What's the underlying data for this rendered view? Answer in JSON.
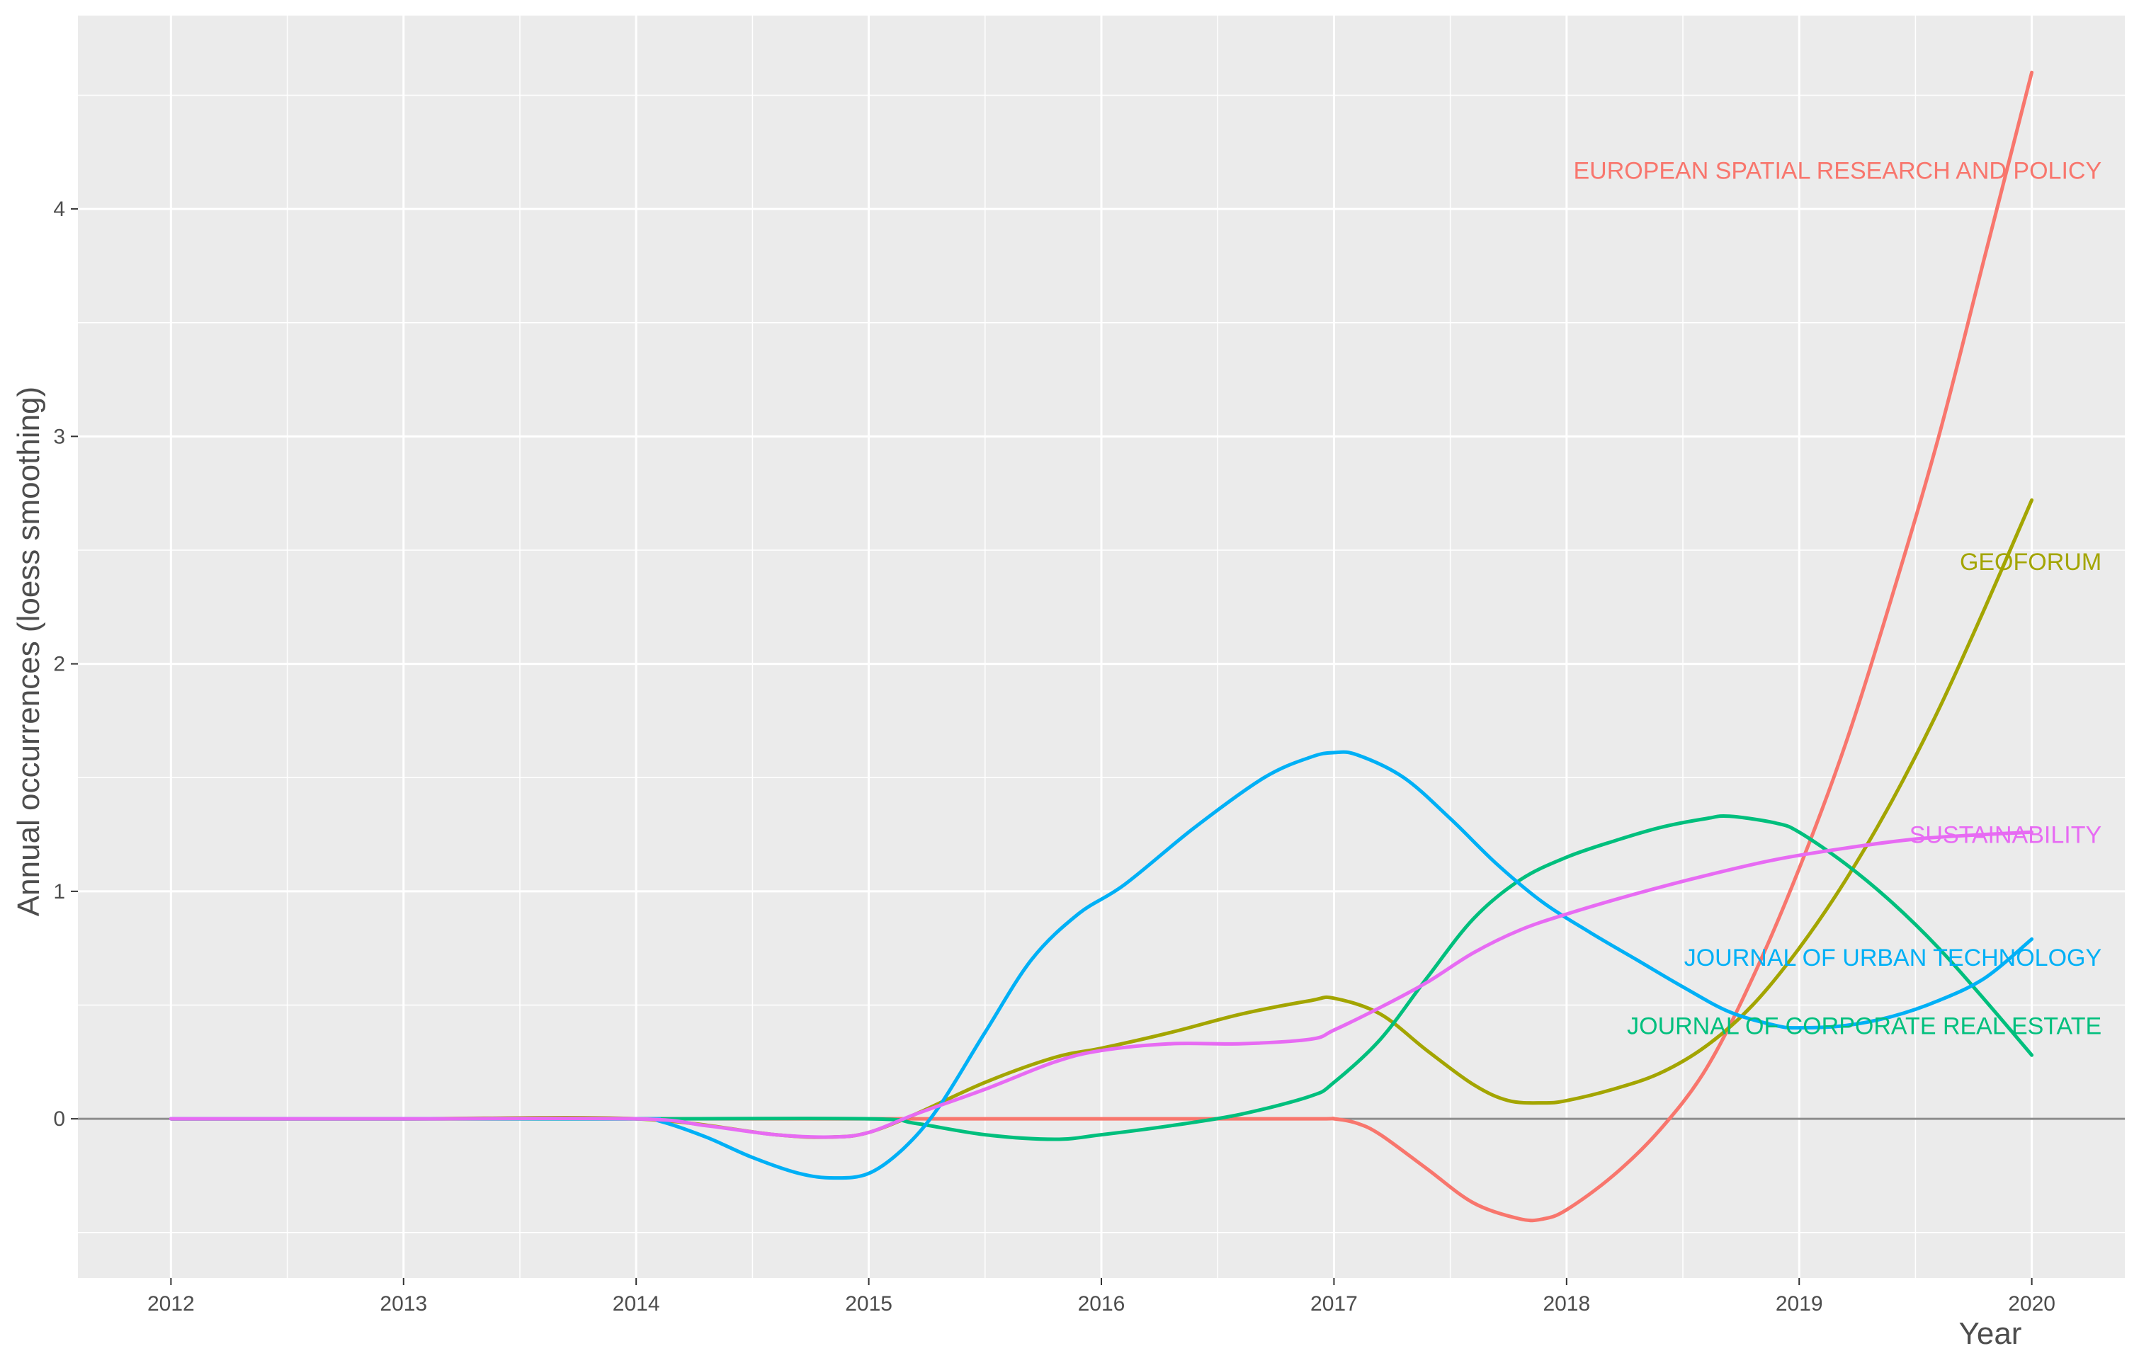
{
  "chart_data": {
    "type": "line",
    "xlabel": "Year",
    "ylabel": "Annual occurrences (loess smoothing)",
    "xlim": [
      2011.6,
      2020.4
    ],
    "ylim": [
      -0.7,
      4.85
    ],
    "x_ticks": [
      "2012",
      "2013",
      "2014",
      "2015",
      "2016",
      "2017",
      "2018",
      "2019",
      "2020"
    ],
    "y_ticks": [
      "0",
      "1",
      "2",
      "3",
      "4"
    ],
    "grid": true,
    "background": "#ebebeb",
    "zero_line": true,
    "legend": "direct labels at right",
    "series": [
      {
        "name": "EUROPEAN SPATIAL RESEARCH AND POLICY",
        "color": "#f8766d",
        "label_at": [
          2020.3,
          4.17
        ],
        "x": [
          2012,
          2013,
          2014,
          2015,
          2016,
          2016.9,
          2017,
          2017.1,
          2017.2,
          2017.4,
          2017.6,
          2017.8,
          2017.9,
          2018,
          2018.2,
          2018.4,
          2018.6,
          2018.8,
          2019,
          2019.2,
          2019.4,
          2019.6,
          2019.8,
          2020
        ],
        "y": [
          0,
          0,
          0,
          0,
          0,
          0,
          0,
          -0.02,
          -0.07,
          -0.22,
          -0.37,
          -0.44,
          -0.44,
          -0.4,
          -0.25,
          -0.05,
          0.22,
          0.62,
          1.1,
          1.65,
          2.3,
          3.0,
          3.8,
          4.6
        ]
      },
      {
        "name": "GEOFORUM",
        "color": "#a3a500",
        "label_at": [
          2020.3,
          2.45
        ],
        "x": [
          2012,
          2013,
          2014,
          2014.6,
          2014.85,
          2015,
          2015.2,
          2015.5,
          2015.8,
          2016,
          2016.3,
          2016.6,
          2016.9,
          2017,
          2017.2,
          2017.4,
          2017.6,
          2017.75,
          2017.9,
          2018,
          2018.2,
          2018.4,
          2018.6,
          2018.8,
          2019,
          2019.2,
          2019.4,
          2019.6,
          2019.8,
          2020
        ],
        "y": [
          0,
          0,
          0,
          -0.07,
          -0.08,
          -0.06,
          0.02,
          0.16,
          0.27,
          0.31,
          0.38,
          0.46,
          0.52,
          0.53,
          0.46,
          0.3,
          0.15,
          0.08,
          0.07,
          0.08,
          0.13,
          0.2,
          0.32,
          0.5,
          0.75,
          1.05,
          1.4,
          1.8,
          2.25,
          2.72
        ]
      },
      {
        "name": "JOURNAL OF CORPORATE REAL ESTATE",
        "color": "#00bf7d",
        "label_at": [
          2020.3,
          0.41
        ],
        "x": [
          2012,
          2013,
          2014,
          2015,
          2015.2,
          2015.5,
          2015.8,
          2016,
          2016.3,
          2016.6,
          2016.9,
          2017,
          2017.2,
          2017.4,
          2017.6,
          2017.8,
          2018,
          2018.2,
          2018.4,
          2018.6,
          2018.7,
          2018.9,
          2019,
          2019.2,
          2019.4,
          2019.6,
          2019.8,
          2020
        ],
        "y": [
          0,
          0,
          0,
          0,
          -0.02,
          -0.07,
          -0.09,
          -0.07,
          -0.03,
          0.02,
          0.1,
          0.16,
          0.35,
          0.62,
          0.88,
          1.05,
          1.15,
          1.22,
          1.28,
          1.32,
          1.33,
          1.3,
          1.26,
          1.12,
          0.95,
          0.75,
          0.52,
          0.28
        ]
      },
      {
        "name": "JOURNAL OF URBAN TECHNOLOGY",
        "color": "#00b0f6",
        "label_at": [
          2020.3,
          0.71
        ],
        "x": [
          2012,
          2013,
          2014,
          2014.1,
          2014.3,
          2014.5,
          2014.7,
          2014.85,
          2015,
          2015.15,
          2015.3,
          2015.5,
          2015.7,
          2015.9,
          2016.1,
          2016.4,
          2016.7,
          2016.9,
          2017,
          2017.1,
          2017.3,
          2017.5,
          2017.7,
          2017.9,
          2018.1,
          2018.3,
          2018.5,
          2018.7,
          2018.9,
          2019,
          2019.2,
          2019.4,
          2019.6,
          2019.8,
          2020
        ],
        "y": [
          0,
          0,
          0,
          -0.01,
          -0.08,
          -0.17,
          -0.24,
          -0.26,
          -0.24,
          -0.13,
          0.05,
          0.38,
          0.7,
          0.9,
          1.03,
          1.28,
          1.5,
          1.59,
          1.61,
          1.6,
          1.5,
          1.32,
          1.12,
          0.95,
          0.82,
          0.7,
          0.58,
          0.47,
          0.41,
          0.4,
          0.41,
          0.45,
          0.52,
          0.62,
          0.79
        ]
      },
      {
        "name": "SUSTAINABILITY",
        "color": "#e76bf3",
        "label_at": [
          2020.3,
          1.25
        ],
        "x": [
          2012,
          2013,
          2014,
          2014.3,
          2014.6,
          2014.85,
          2015,
          2015.2,
          2015.5,
          2015.8,
          2016,
          2016.3,
          2016.6,
          2016.9,
          2017,
          2017.2,
          2017.4,
          2017.6,
          2017.8,
          2018,
          2018.3,
          2018.6,
          2018.9,
          2019.2,
          2019.5,
          2019.8,
          2020
        ],
        "y": [
          0,
          0,
          0,
          -0.03,
          -0.07,
          -0.08,
          -0.06,
          0.02,
          0.13,
          0.25,
          0.3,
          0.33,
          0.33,
          0.35,
          0.39,
          0.49,
          0.6,
          0.73,
          0.83,
          0.9,
          0.99,
          1.07,
          1.14,
          1.19,
          1.23,
          1.25,
          1.26
        ]
      }
    ]
  }
}
